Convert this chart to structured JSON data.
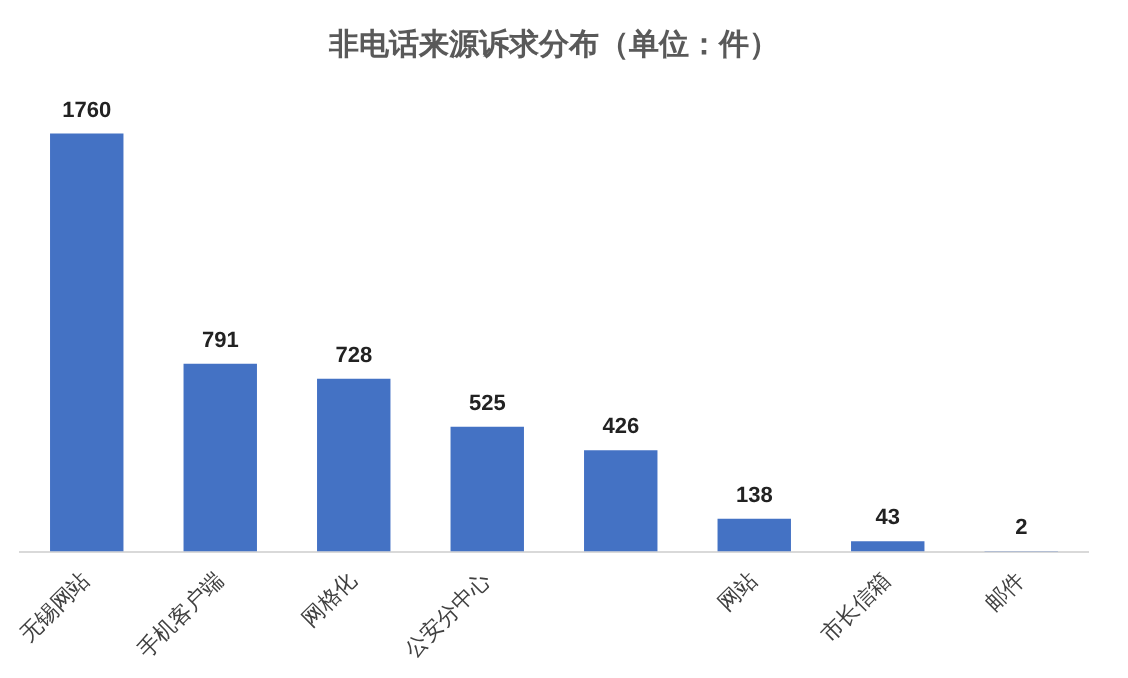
{
  "chart_data": {
    "type": "bar",
    "title": "非电话来源诉求分布（单位：件）",
    "categories": [
      "无锡网站",
      "手机客户端",
      "网格化",
      "公安分中心",
      null,
      "网站",
      "市长信箱",
      "邮件"
    ],
    "values": [
      1760,
      791,
      728,
      525,
      426,
      138,
      43,
      2
    ],
    "color": "#4472c4",
    "data_labels": true,
    "grid": false,
    "legend": false
  }
}
